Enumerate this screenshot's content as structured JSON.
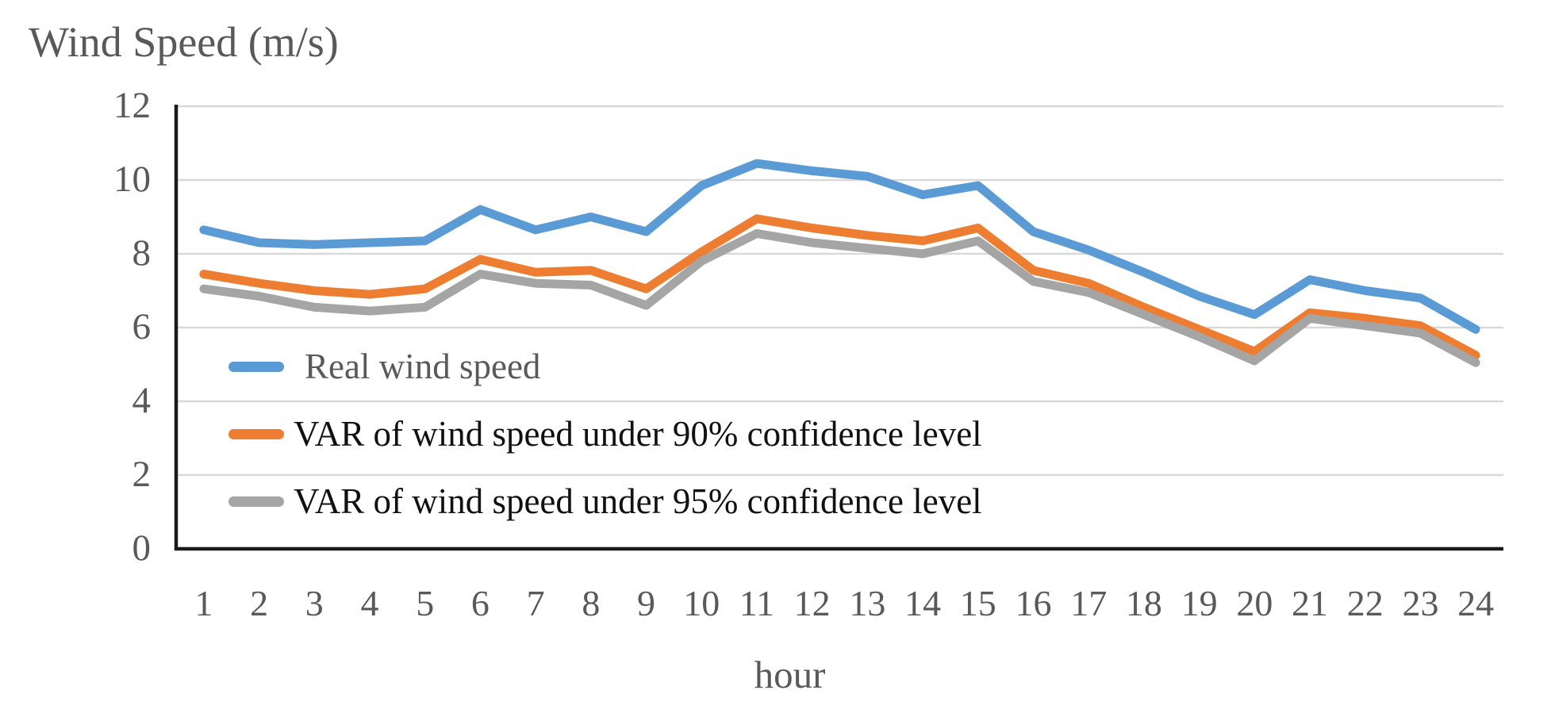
{
  "title": "Wind Speed (m/s)",
  "xlabel": "hour",
  "chart_data": {
    "type": "line",
    "title": "Wind Speed (m/s)",
    "xlabel": "hour",
    "ylabel": "Wind Speed (m/s)",
    "x": [
      1,
      2,
      3,
      4,
      5,
      6,
      7,
      8,
      9,
      10,
      11,
      12,
      13,
      14,
      15,
      16,
      17,
      18,
      19,
      20,
      21,
      22,
      23,
      24
    ],
    "ylim": [
      0,
      12
    ],
    "yticks": [
      0,
      2,
      4,
      6,
      8,
      10,
      12
    ],
    "grid": true,
    "legend_position": "inside-bottom-left",
    "series": [
      {
        "name": "Real wind speed",
        "color": "#5B9BD5",
        "label_color": "#595959",
        "values": [
          8.65,
          8.3,
          8.25,
          8.3,
          8.35,
          9.2,
          8.65,
          9.0,
          8.6,
          9.85,
          10.45,
          10.25,
          10.1,
          9.6,
          9.85,
          8.6,
          8.1,
          7.5,
          6.85,
          6.35,
          7.3,
          7.0,
          6.8,
          5.95
        ]
      },
      {
        "name": "VAR of wind speed under 90% confidence level",
        "color": "#ED7D31",
        "label_color": "#111111",
        "values": [
          7.45,
          7.2,
          7.0,
          6.9,
          7.05,
          7.85,
          7.5,
          7.55,
          7.05,
          8.05,
          8.95,
          8.7,
          8.5,
          8.35,
          8.7,
          7.55,
          7.2,
          6.55,
          5.95,
          5.35,
          6.4,
          6.25,
          6.05,
          5.25
        ]
      },
      {
        "name": "VAR of wind speed under 95% confidence level",
        "color": "#A5A5A5",
        "label_color": "#111111",
        "values": [
          7.05,
          6.85,
          6.55,
          6.45,
          6.55,
          7.45,
          7.2,
          7.15,
          6.6,
          7.8,
          8.55,
          8.3,
          8.15,
          8.0,
          8.35,
          7.25,
          6.95,
          6.35,
          5.75,
          5.1,
          6.25,
          6.05,
          5.85,
          5.05
        ]
      }
    ],
    "styles": {
      "gridline_color": "#D9D9D9",
      "axis_color": "#1a1a1a",
      "line_width": 11
    }
  }
}
